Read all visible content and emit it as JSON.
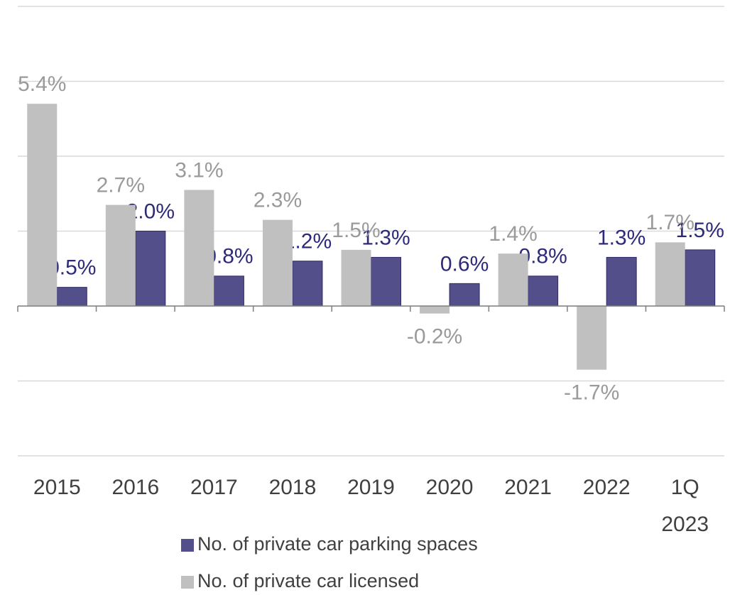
{
  "chart_data": {
    "type": "bar",
    "categories": [
      "2015",
      "2016",
      "2017",
      "2018",
      "2019",
      "2020",
      "2021",
      "2022",
      "1Q 2023"
    ],
    "series": [
      {
        "name": "No. of private car parking spaces",
        "color": "#534f8a",
        "values": [
          0.5,
          2.0,
          0.8,
          1.2,
          1.3,
          0.6,
          0.8,
          1.3,
          1.5
        ],
        "value_labels": [
          "0.5%",
          "2.0%",
          "0.8%",
          "1.2%",
          "1.3%",
          "0.6%",
          "0.8%",
          "1.3%",
          "1.5%"
        ]
      },
      {
        "name": "No. of private car licensed",
        "color": "#c0c0c0",
        "values": [
          5.4,
          2.7,
          3.1,
          2.3,
          1.5,
          -0.2,
          1.4,
          -1.7,
          1.7
        ],
        "value_labels": [
          "5.4%",
          "2.7%",
          "3.1%",
          "2.3%",
          "1.5%",
          "-0.2%",
          "1.4%",
          "-1.7%",
          "1.7%"
        ]
      }
    ],
    "ylim": [
      -4,
      8
    ],
    "yticks": [
      -4,
      -2,
      0,
      2,
      4,
      6,
      8
    ],
    "grid": true
  }
}
